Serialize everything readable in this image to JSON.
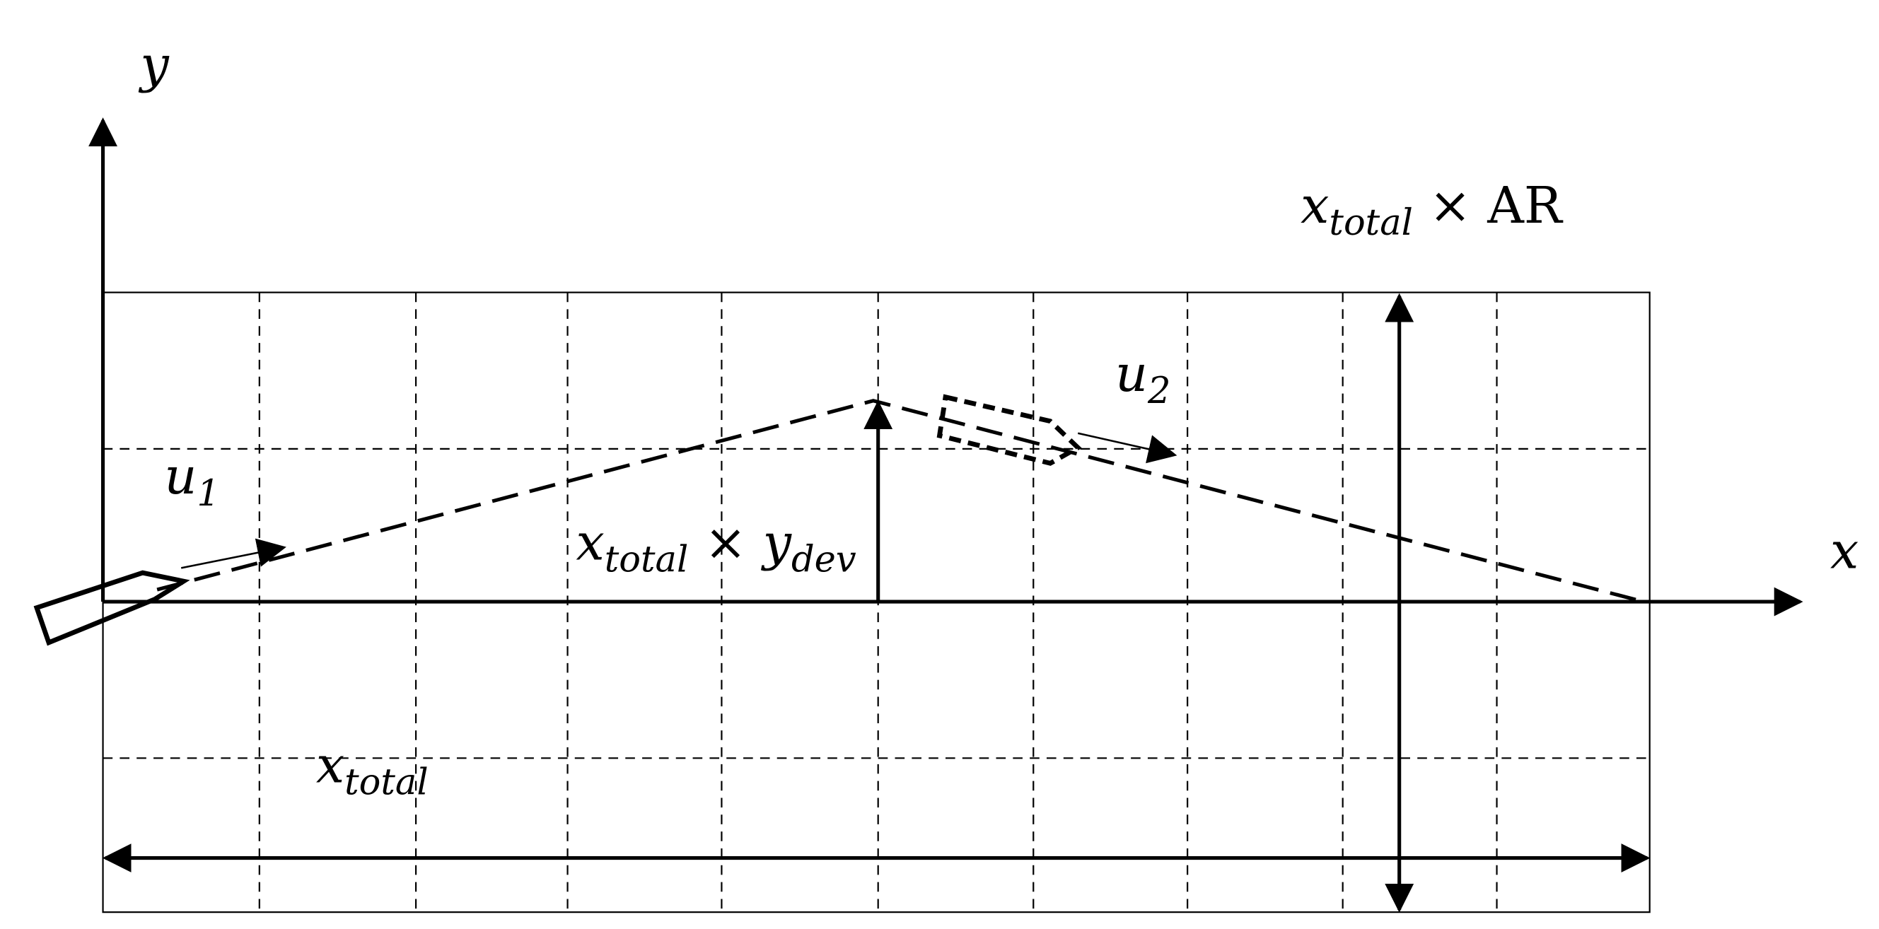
{
  "axes": {
    "y": "y",
    "x": "x"
  },
  "labels": {
    "u1": {
      "main": "u",
      "sub": "1"
    },
    "u2": {
      "main": "u",
      "sub": "2"
    },
    "height": {
      "main": "x",
      "sub": "total",
      "rest": " × AR"
    },
    "deviation": {
      "main": "x",
      "sub": "total",
      "rest": " × y",
      "sub2": "dev"
    },
    "length": {
      "main": "x",
      "sub": "total"
    }
  }
}
